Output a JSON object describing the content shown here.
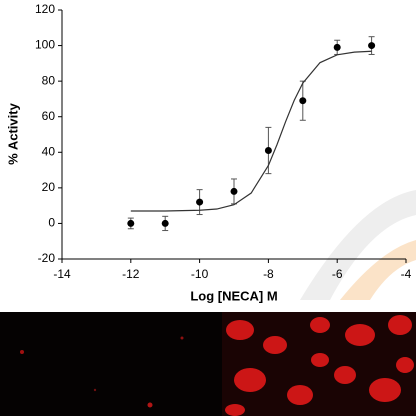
{
  "chart_data": {
    "type": "scatter",
    "xlabel": "Log [NECA] M",
    "ylabel": "% Activity",
    "xlim": [
      -14,
      -4
    ],
    "xticks": [
      -14,
      -12,
      -10,
      -8,
      -6,
      -4
    ],
    "ylim": [
      -20,
      120
    ],
    "yticks": [
      -20,
      0,
      20,
      40,
      60,
      80,
      100,
      120
    ],
    "series": [
      {
        "color": "#000000",
        "x": [
          -12,
          -11,
          -10,
          -9,
          -8,
          -7,
          -6,
          -5
        ],
        "values": [
          0,
          0,
          12,
          18,
          41,
          69,
          99,
          100
        ],
        "errors": [
          3,
          4,
          7,
          7,
          13,
          11,
          4,
          5
        ]
      },
      {
        "color": "#333333",
        "line": true,
        "x": [
          -12,
          -11,
          -10,
          -9.5,
          -9,
          -8.5,
          -8,
          -7.75,
          -7.5,
          -7.25,
          -7,
          -6.5,
          -6,
          -5.5,
          -5
        ],
        "values": [
          7.0,
          7.0,
          7.4,
          8.1,
          10.5,
          17.1,
          32.6,
          44.3,
          57.2,
          69.2,
          78.9,
          90.4,
          94.8,
          96.3,
          96.8
        ]
      }
    ]
  }
}
